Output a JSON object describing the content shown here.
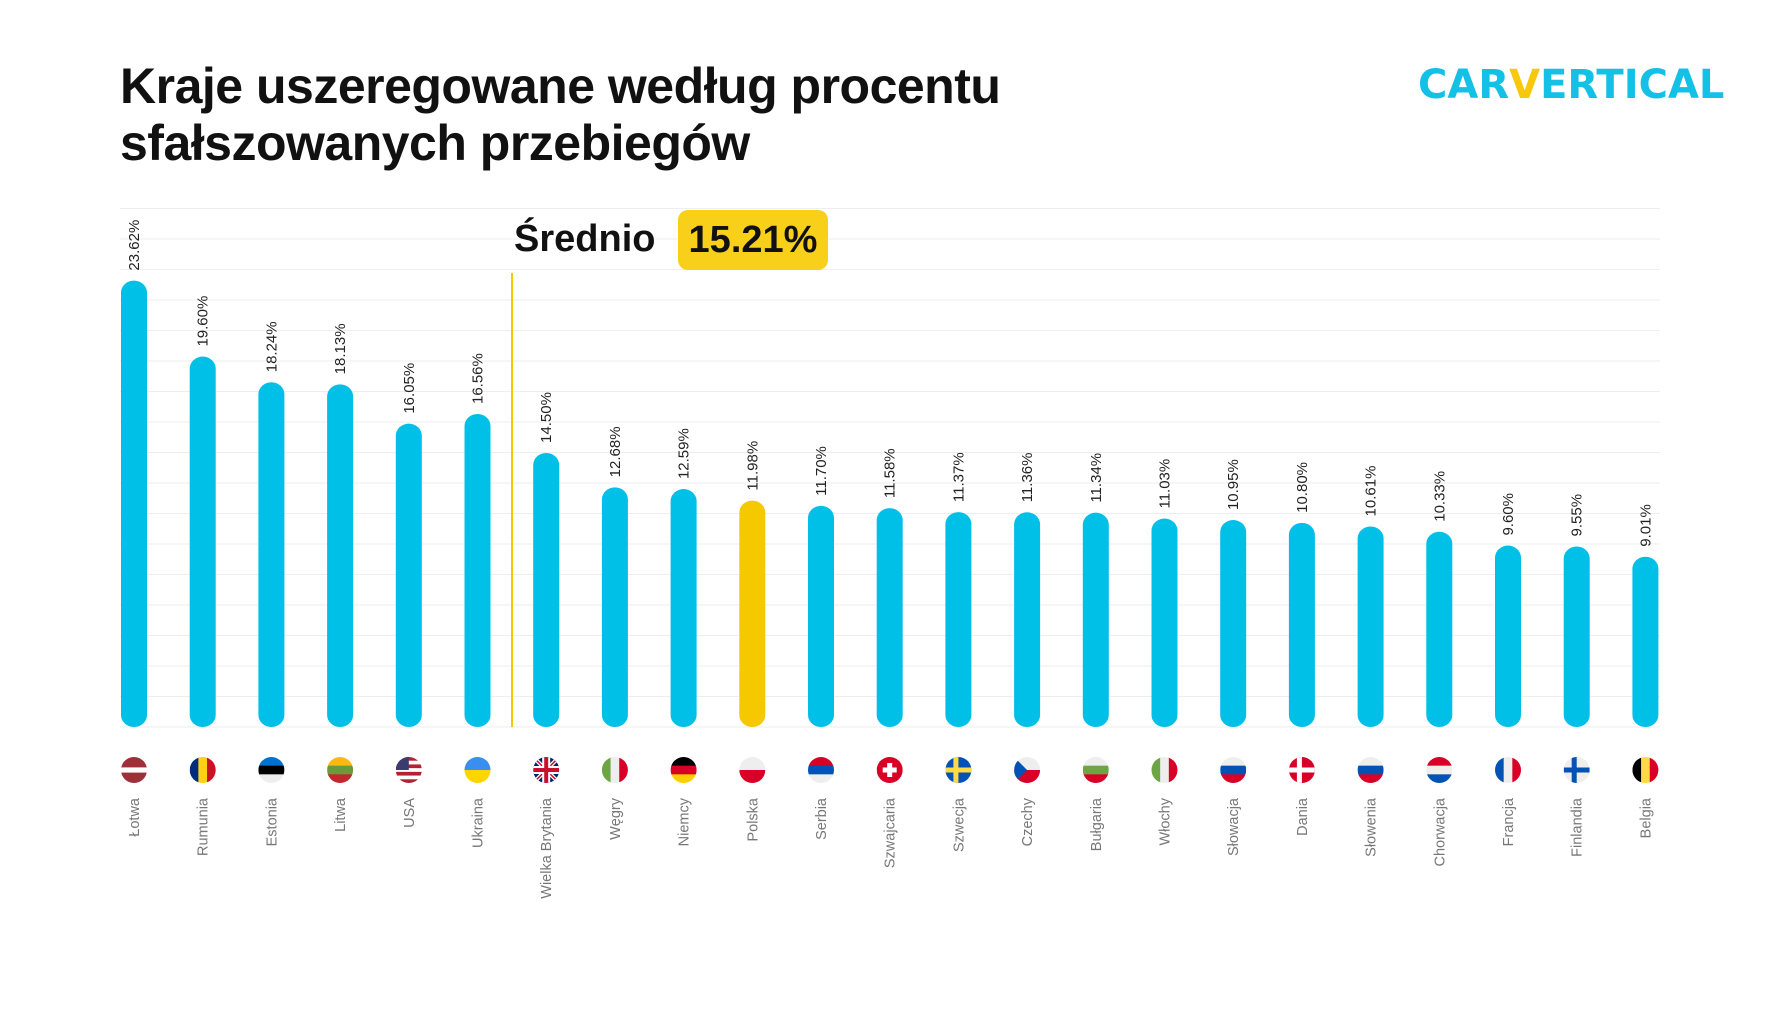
{
  "title_lines": [
    "Kraje uszeregowane według procentu",
    "sfałszowanych przebiegów"
  ],
  "logo": {
    "pre": "CAR",
    "v": "V",
    "post": "ERTICAL"
  },
  "colors": {
    "bar": "#00C0E8",
    "highlight": "#F5C800",
    "average_line": "#F5C800",
    "grid": "#EEEEEE",
    "label": "#777777"
  },
  "average": {
    "label": "Średnio",
    "value": "15.21%"
  },
  "chart_data": {
    "type": "bar",
    "ylim": [
      0,
      27.3
    ],
    "grid": true,
    "average_value": 15.21,
    "highlight_category": "Polska",
    "categories": [
      "Łotwa",
      "Rumunia",
      "Estonia",
      "Litwa",
      "USA",
      "Ukraina",
      "Wielka Brytania",
      "Węgry",
      "Niemcy",
      "Polska",
      "Serbia",
      "Szwajcaria",
      "Szwecja",
      "Czechy",
      "Bułgaria",
      "Włochy",
      "Słowacja",
      "Dania",
      "Słowenia",
      "Chorwacja",
      "Francja",
      "Finlandia",
      "Belgia"
    ],
    "values": [
      23.62,
      19.6,
      18.24,
      18.13,
      16.05,
      16.56,
      14.5,
      12.68,
      12.59,
      11.98,
      11.7,
      11.58,
      11.37,
      11.36,
      11.34,
      11.03,
      10.95,
      10.8,
      10.61,
      10.33,
      9.6,
      9.55,
      9.01
    ],
    "value_labels": [
      "23.62%",
      "19.60%",
      "18.24%",
      "18.13%",
      "16.05%",
      "16.56%",
      "14.50%",
      "12.68%",
      "12.59%",
      "11.98%",
      "11.70%",
      "11.58%",
      "11.37%",
      "11.36%",
      "11.34%",
      "11.03%",
      "10.95%",
      "10.80%",
      "10.61%",
      "10.33%",
      "9.60%",
      "9.55%",
      "9.01%"
    ],
    "flags": [
      {
        "icon": "latvia-flag-icon",
        "dir": "h",
        "stripes": [
          "#9E3039",
          "#9E3039",
          "#ffffff",
          "#9E3039",
          "#9E3039"
        ]
      },
      {
        "icon": "romania-flag-icon",
        "dir": "v",
        "stripes": [
          "#002B7F",
          "#FCD116",
          "#CE1126"
        ]
      },
      {
        "icon": "estonia-flag-icon",
        "dir": "h",
        "stripes": [
          "#0072CE",
          "#000000",
          "#eeeeee"
        ]
      },
      {
        "icon": "lithuania-flag-icon",
        "dir": "h",
        "stripes": [
          "#FDB913",
          "#6A9A3A",
          "#C1272D"
        ]
      },
      {
        "icon": "usa-flag-icon",
        "dir": "h",
        "stripes": [
          "#B22234",
          "#ffffff",
          "#B22234",
          "#ffffff",
          "#B22234",
          "#ffffff",
          "#B22234"
        ],
        "canton": "#3C3B6E"
      },
      {
        "icon": "ukraine-flag-icon",
        "dir": "h",
        "stripes": [
          "#3A8EF0",
          "#FFD500"
        ]
      },
      {
        "icon": "uk-flag-icon",
        "dir": "cross",
        "stripes": [
          "#012169",
          "#ffffff",
          "#C8102E"
        ]
      },
      {
        "icon": "italy-flag-icon",
        "dir": "v",
        "stripes": [
          "#6DA544",
          "#eeeeee",
          "#D80027"
        ]
      },
      {
        "icon": "germany-flag-icon",
        "dir": "h",
        "stripes": [
          "#000000",
          "#D80027",
          "#FFCE00"
        ]
      },
      {
        "icon": "poland-flag-icon",
        "dir": "h",
        "stripes": [
          "#eeeeee",
          "#D80027"
        ]
      },
      {
        "icon": "serbia-flag-icon",
        "dir": "h",
        "stripes": [
          "#D80027",
          "#0052B4",
          "#eeeeee"
        ]
      },
      {
        "icon": "switzerland-flag-icon",
        "dir": "plus",
        "stripes": [
          "#D80027",
          "#ffffff"
        ]
      },
      {
        "icon": "sweden-flag-icon",
        "dir": "nordic",
        "stripes": [
          "#0052B4",
          "#FFDA44"
        ]
      },
      {
        "icon": "czechia-flag-icon",
        "dir": "h",
        "stripes": [
          "#eeeeee",
          "#D80027"
        ],
        "canton": "#0052B4"
      },
      {
        "icon": "bulgaria-flag-icon",
        "dir": "h",
        "stripes": [
          "#eeeeee",
          "#6DA544",
          "#D80027"
        ]
      },
      {
        "icon": "italy-flag-icon",
        "dir": "v",
        "stripes": [
          "#6DA544",
          "#eeeeee",
          "#D80027"
        ]
      },
      {
        "icon": "slovakia-flag-icon",
        "dir": "h",
        "stripes": [
          "#eeeeee",
          "#0052B4",
          "#D80027"
        ]
      },
      {
        "icon": "denmark-flag-icon",
        "dir": "nordic",
        "stripes": [
          "#D80027",
          "#ffffff"
        ]
      },
      {
        "icon": "slovenia-flag-icon",
        "dir": "h",
        "stripes": [
          "#eeeeee",
          "#0052B4",
          "#D80027"
        ]
      },
      {
        "icon": "croatia-flag-icon",
        "dir": "h",
        "stripes": [
          "#D80027",
          "#eeeeee",
          "#0052B4"
        ]
      },
      {
        "icon": "france-flag-icon",
        "dir": "v",
        "stripes": [
          "#0052B4",
          "#eeeeee",
          "#D80027"
        ]
      },
      {
        "icon": "finland-flag-icon",
        "dir": "nordic",
        "stripes": [
          "#eeeeee",
          "#0052B4"
        ]
      },
      {
        "icon": "belgium-flag-icon",
        "dir": "v",
        "stripes": [
          "#000000",
          "#FFDA44",
          "#D80027"
        ]
      }
    ]
  }
}
